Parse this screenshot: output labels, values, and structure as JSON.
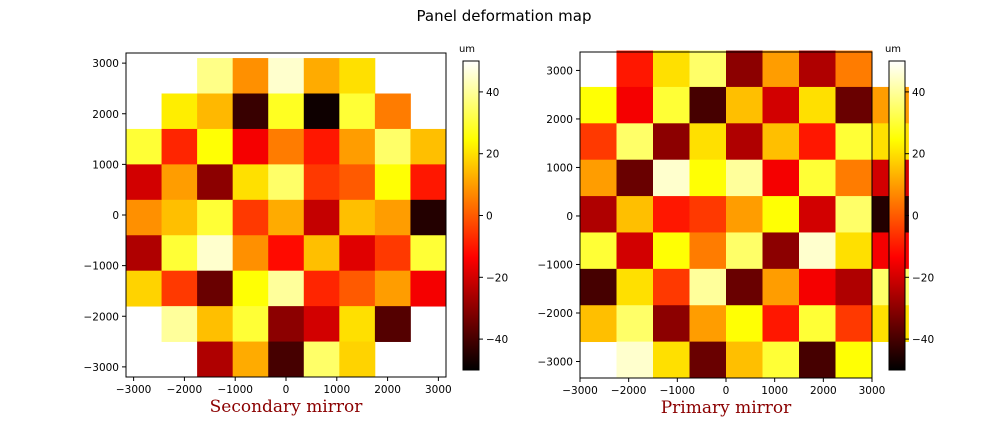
{
  "figure": {
    "title": "Panel deformation map"
  },
  "chart_data": [
    {
      "type": "heatmap",
      "name": "secondary",
      "title": "",
      "xlabel": "Secondary mirror",
      "ylabel": "",
      "xlim": [
        -3150,
        3150
      ],
      "ylim": [
        -3200,
        3200
      ],
      "xticks": [
        -3000,
        -2000,
        -1000,
        0,
        1000,
        2000,
        3000
      ],
      "yticks": [
        -3000,
        -2000,
        -1000,
        0,
        1000,
        2000,
        3000
      ],
      "xtick_labels": [
        "−3000",
        "−2000",
        "−1000",
        "0",
        "1000",
        "2000",
        "3000"
      ],
      "ytick_labels": [
        "−3000",
        "−2000",
        "−1000",
        "0",
        "1000",
        "2000",
        "3000"
      ],
      "panel_size": 700,
      "x0": -3150,
      "y0": -3200,
      "rows": [
        [
          null,
          null,
          38,
          8,
          45,
          12,
          20,
          null,
          null
        ],
        [
          null,
          22,
          14,
          -42,
          28,
          -48,
          30,
          5,
          null
        ],
        [
          30,
          -8,
          25,
          -15,
          5,
          -10,
          10,
          35,
          15
        ],
        [
          -20,
          10,
          -30,
          20,
          35,
          -5,
          0,
          25,
          -10
        ],
        [
          8,
          15,
          30,
          -5,
          12,
          -22,
          15,
          10,
          -45
        ],
        [
          -25,
          30,
          45,
          8,
          -12,
          15,
          -18,
          -5,
          30
        ],
        [
          18,
          -5,
          -35,
          25,
          40,
          -8,
          0,
          10,
          -15
        ],
        [
          null,
          40,
          15,
          30,
          -30,
          -20,
          20,
          -38,
          null
        ],
        [
          null,
          null,
          -25,
          12,
          -40,
          35,
          18,
          null,
          null
        ]
      ],
      "colorbar": {
        "unit": "um",
        "min": -50,
        "max": 50,
        "ticks": [
          40,
          20,
          0,
          -20,
          -40
        ],
        "tick_labels": [
          "40",
          "20",
          "0",
          "−20",
          "−40"
        ]
      }
    },
    {
      "type": "heatmap",
      "name": "primary",
      "title": "",
      "xlabel": "Primary mirror",
      "ylabel": "",
      "xlim": [
        -3000,
        3000
      ],
      "ylim": [
        -3340,
        3380
      ],
      "xticks": [
        -3000,
        -2000,
        -1000,
        0,
        1000,
        2000,
        3000
      ],
      "yticks": [
        -3000,
        -2000,
        -1000,
        0,
        1000,
        2000,
        3000
      ],
      "xtick_labels": [
        "−3000",
        "−2000",
        "−1000",
        "0",
        "1000",
        "2000",
        "3000"
      ],
      "ytick_labels": [
        "−3000",
        "−2000",
        "−1000",
        "0",
        "1000",
        "2000",
        "3000"
      ],
      "panel_size": 750,
      "x0": -3000,
      "y0": -3340,
      "rows": [
        [
          null,
          -10,
          20,
          35,
          -30,
          10,
          -25,
          5,
          null
        ],
        [
          25,
          -15,
          30,
          -40,
          15,
          -20,
          20,
          -35,
          10
        ],
        [
          -5,
          35,
          -30,
          20,
          -25,
          15,
          -10,
          30,
          20
        ],
        [
          10,
          -35,
          45,
          25,
          40,
          -15,
          30,
          5,
          -20
        ],
        [
          -25,
          15,
          -10,
          -5,
          10,
          25,
          -20,
          35,
          -45
        ],
        [
          30,
          -20,
          25,
          5,
          35,
          -30,
          45,
          20,
          -15
        ],
        [
          -40,
          20,
          -5,
          40,
          -35,
          10,
          -15,
          -25,
          35
        ],
        [
          15,
          35,
          -30,
          10,
          25,
          -10,
          30,
          -5,
          20
        ],
        [
          null,
          45,
          20,
          -35,
          15,
          30,
          -40,
          25,
          null
        ]
      ],
      "colorbar": {
        "unit": "um",
        "min": -50,
        "max": 50,
        "ticks": [
          40,
          20,
          0,
          -20,
          -40
        ],
        "tick_labels": [
          "40",
          "20",
          "0",
          "−20",
          "−40"
        ]
      }
    }
  ]
}
